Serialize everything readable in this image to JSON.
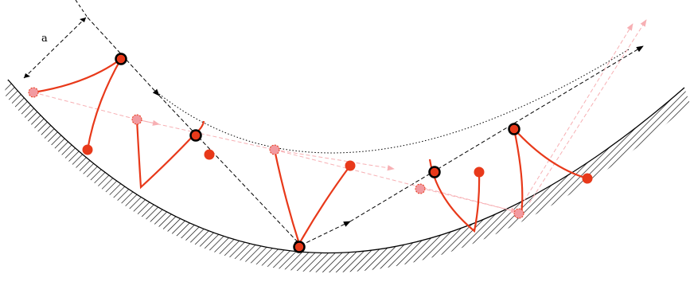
{
  "figure": {
    "dimension_label": "a",
    "colors": {
      "surface": "#000000",
      "particle_path": "#e8391a",
      "particle_fill": "#e8391a",
      "ghost_fill": "#f29aa0",
      "ghost_path": "#f7b0b4",
      "center_trajectory": "#000000"
    }
  }
}
